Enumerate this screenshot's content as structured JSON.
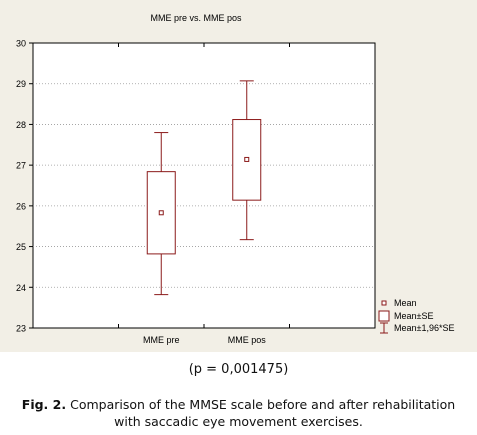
{
  "chart_data": {
    "type": "box",
    "title": "MME pre vs. MME pos",
    "ylim": [
      23,
      30
    ],
    "yticks": [
      23,
      24,
      25,
      26,
      27,
      28,
      29,
      30
    ],
    "categories": [
      "MME pre",
      "MME pos"
    ],
    "grid": true,
    "series": [
      {
        "category": "MME pre",
        "mean": 25.83,
        "mean_minus_se": 24.82,
        "mean_plus_se": 26.84,
        "mean_minus_196se": 23.82,
        "mean_plus_196se": 27.8
      },
      {
        "category": "MME pos",
        "mean": 27.14,
        "mean_minus_se": 26.14,
        "mean_plus_se": 28.12,
        "mean_minus_196se": 25.17,
        "mean_plus_196se": 29.07
      }
    ],
    "legend": {
      "placement": "bottom-right",
      "entries": [
        "Mean",
        "Mean±SE",
        "Mean±1,96*SE"
      ]
    }
  },
  "p_value_text": "(p = 0,001475)",
  "caption": {
    "label": "Fig. 2.",
    "text": "Comparison of the MMSE scale before and after rehabilitation with saccadic eye movement exercises."
  }
}
